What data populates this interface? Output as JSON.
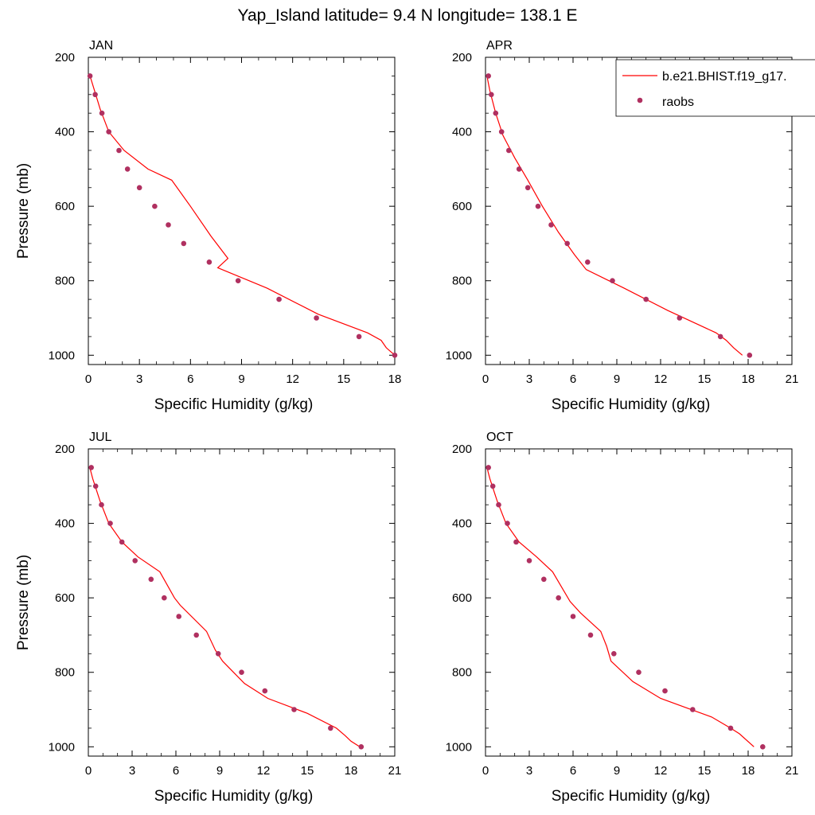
{
  "figure": {
    "title": "Yap_Island  latitude= 9.4 N longitude= 138.1 E"
  },
  "legend": {
    "model_label": "b.e21.BHIST.f19_g17.",
    "obs_label": "raobs",
    "placement": "top-right, overlapping APR panel",
    "model_color": "#ff0000",
    "obs_color": "#b03060"
  },
  "chart_data": [
    {
      "type": "line",
      "title": "JAN",
      "xlabel": "Specific Humidity (g/kg)",
      "ylabel": "Pressure (mb)",
      "xlim": [
        0,
        18
      ],
      "ylim": [
        1025,
        200
      ],
      "xticks": [
        0,
        3,
        6,
        9,
        12,
        15,
        18
      ],
      "yticks": [
        200,
        400,
        600,
        800,
        1000
      ],
      "grid": false,
      "series": [
        {
          "name": "b.e21.BHIST.f19_g17.",
          "kind": "line",
          "color": "#ff0000",
          "points": [
            [
              0.1,
              250
            ],
            [
              0.3,
              280
            ],
            [
              0.7,
              340
            ],
            [
              1.2,
              400
            ],
            [
              2.1,
              450
            ],
            [
              3.5,
              500
            ],
            [
              3.5,
              500
            ],
            [
              4.9,
              530
            ],
            [
              6.0,
              600
            ],
            [
              7.2,
              680
            ],
            [
              8.2,
              740
            ],
            [
              7.6,
              765
            ],
            [
              10.5,
              820
            ],
            [
              13.5,
              890
            ],
            [
              16.4,
              940
            ],
            [
              17.2,
              960
            ],
            [
              17.5,
              980
            ],
            [
              18.0,
              1000
            ]
          ]
        },
        {
          "name": "raobs",
          "kind": "scatter",
          "color": "#b03060",
          "points": [
            [
              0.1,
              250
            ],
            [
              0.4,
              300
            ],
            [
              0.8,
              350
            ],
            [
              1.2,
              400
            ],
            [
              1.8,
              450
            ],
            [
              2.3,
              500
            ],
            [
              3.0,
              550
            ],
            [
              3.9,
              600
            ],
            [
              4.7,
              650
            ],
            [
              5.6,
              700
            ],
            [
              7.1,
              750
            ],
            [
              8.8,
              800
            ],
            [
              11.2,
              850
            ],
            [
              13.4,
              900
            ],
            [
              15.9,
              950
            ],
            [
              18.0,
              1000
            ]
          ]
        }
      ]
    },
    {
      "type": "line",
      "title": "APR",
      "xlabel": "Specific Humidity (g/kg)",
      "ylabel": "",
      "xlim": [
        0,
        21
      ],
      "ylim": [
        1025,
        200
      ],
      "xticks": [
        0,
        3,
        6,
        9,
        12,
        15,
        18,
        21
      ],
      "yticks": [
        200,
        400,
        600,
        800,
        1000
      ],
      "grid": false,
      "series": [
        {
          "name": "b.e21.BHIST.f19_g17.",
          "kind": "line",
          "color": "#ff0000",
          "points": [
            [
              0.1,
              250
            ],
            [
              0.3,
              290
            ],
            [
              0.7,
              350
            ],
            [
              1.2,
              410
            ],
            [
              2.0,
              470
            ],
            [
              2.9,
              530
            ],
            [
              3.9,
              600
            ],
            [
              5.0,
              670
            ],
            [
              6.1,
              730
            ],
            [
              6.9,
              770
            ],
            [
              9.5,
              820
            ],
            [
              12.5,
              880
            ],
            [
              15.8,
              940
            ],
            [
              16.5,
              960
            ],
            [
              17.0,
              980
            ],
            [
              17.6,
              1000
            ]
          ]
        },
        {
          "name": "raobs",
          "kind": "scatter",
          "color": "#b03060",
          "points": [
            [
              0.2,
              250
            ],
            [
              0.4,
              300
            ],
            [
              0.7,
              350
            ],
            [
              1.1,
              400
            ],
            [
              1.6,
              450
            ],
            [
              2.3,
              500
            ],
            [
              2.9,
              550
            ],
            [
              3.6,
              600
            ],
            [
              4.5,
              650
            ],
            [
              5.6,
              700
            ],
            [
              7.0,
              750
            ],
            [
              8.7,
              800
            ],
            [
              11.0,
              850
            ],
            [
              13.3,
              900
            ],
            [
              16.1,
              950
            ],
            [
              18.1,
              1000
            ]
          ]
        }
      ]
    },
    {
      "type": "line",
      "title": "JUL",
      "xlabel": "Specific Humidity (g/kg)",
      "ylabel": "Pressure (mb)",
      "xlim": [
        0,
        21
      ],
      "ylim": [
        1025,
        200
      ],
      "xticks": [
        0,
        3,
        6,
        9,
        12,
        15,
        18,
        21
      ],
      "yticks": [
        200,
        400,
        600,
        800,
        1000
      ],
      "grid": false,
      "series": [
        {
          "name": "b.e21.BHIST.f19_g17.",
          "kind": "line",
          "color": "#ff0000",
          "points": [
            [
              0.1,
              250
            ],
            [
              0.3,
              280
            ],
            [
              0.8,
              340
            ],
            [
              1.4,
              400
            ],
            [
              2.3,
              450
            ],
            [
              3.4,
              490
            ],
            [
              4.9,
              530
            ],
            [
              5.9,
              600
            ],
            [
              6.3,
              620
            ],
            [
              8.1,
              690
            ],
            [
              8.7,
              740
            ],
            [
              9.2,
              770
            ],
            [
              10.7,
              830
            ],
            [
              12.3,
              870
            ],
            [
              15.0,
              910
            ],
            [
              17.0,
              950
            ],
            [
              17.6,
              970
            ],
            [
              18.0,
              985
            ],
            [
              18.6,
              1000
            ]
          ]
        },
        {
          "name": "raobs",
          "kind": "scatter",
          "color": "#b03060",
          "points": [
            [
              0.2,
              250
            ],
            [
              0.5,
              300
            ],
            [
              0.9,
              350
            ],
            [
              1.5,
              400
            ],
            [
              2.3,
              450
            ],
            [
              3.2,
              500
            ],
            [
              4.3,
              550
            ],
            [
              5.2,
              600
            ],
            [
              6.2,
              650
            ],
            [
              7.4,
              700
            ],
            [
              8.9,
              750
            ],
            [
              10.5,
              800
            ],
            [
              12.1,
              850
            ],
            [
              14.1,
              900
            ],
            [
              16.6,
              950
            ],
            [
              18.7,
              1000
            ]
          ]
        }
      ]
    },
    {
      "type": "line",
      "title": "OCT",
      "xlabel": "Specific Humidity (g/kg)",
      "ylabel": "",
      "xlim": [
        0,
        21
      ],
      "ylim": [
        1025,
        200
      ],
      "xticks": [
        0,
        3,
        6,
        9,
        12,
        15,
        18,
        21
      ],
      "yticks": [
        200,
        400,
        600,
        800,
        1000
      ],
      "grid": false,
      "series": [
        {
          "name": "b.e21.BHIST.f19_g17.",
          "kind": "line",
          "color": "#ff0000",
          "points": [
            [
              0.1,
              250
            ],
            [
              0.3,
              280
            ],
            [
              0.8,
              340
            ],
            [
              1.4,
              400
            ],
            [
              2.3,
              450
            ],
            [
              3.5,
              490
            ],
            [
              4.6,
              530
            ],
            [
              5.8,
              610
            ],
            [
              6.5,
              640
            ],
            [
              7.9,
              690
            ],
            [
              8.3,
              730
            ],
            [
              8.6,
              770
            ],
            [
              10.1,
              825
            ],
            [
              12.0,
              870
            ],
            [
              15.5,
              920
            ],
            [
              16.8,
              950
            ],
            [
              17.4,
              965
            ],
            [
              18.4,
              1000
            ]
          ]
        },
        {
          "name": "raobs",
          "kind": "scatter",
          "color": "#b03060",
          "points": [
            [
              0.2,
              250
            ],
            [
              0.5,
              300
            ],
            [
              0.9,
              350
            ],
            [
              1.5,
              400
            ],
            [
              2.1,
              450
            ],
            [
              3.0,
              500
            ],
            [
              4.0,
              550
            ],
            [
              5.0,
              600
            ],
            [
              6.0,
              650
            ],
            [
              7.2,
              700
            ],
            [
              8.8,
              750
            ],
            [
              10.5,
              800
            ],
            [
              12.3,
              850
            ],
            [
              14.2,
              900
            ],
            [
              16.8,
              950
            ],
            [
              19.0,
              1000
            ]
          ]
        }
      ]
    }
  ]
}
